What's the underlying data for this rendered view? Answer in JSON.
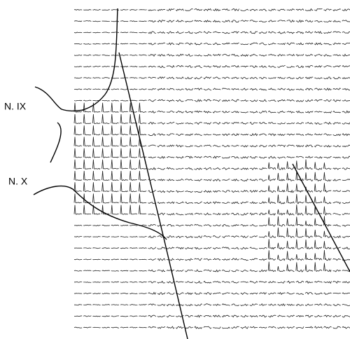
{
  "labels": {
    "nerve_ix": "N. IX",
    "nerve_x": "N. X"
  }
}
